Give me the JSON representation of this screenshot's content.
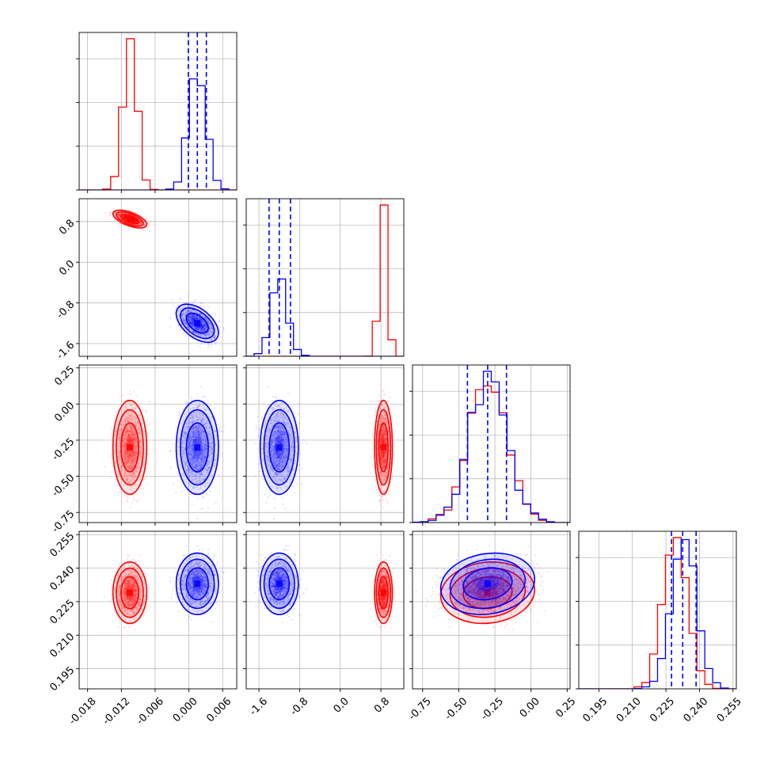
{
  "chart_data": {
    "type": "corner",
    "title": "",
    "grid": true,
    "colors": {
      "series_a": "#ff0000",
      "series_b": "#0000ff"
    },
    "parameters": [
      {
        "range": [
          -0.0195,
          0.0085
        ],
        "ticks": [
          "-0.018",
          "-0.012",
          "-0.006",
          "0.000",
          "0.006"
        ],
        "tick_values": [
          -0.018,
          -0.012,
          -0.006,
          0.0,
          0.006
        ]
      },
      {
        "range": [
          -1.85,
          1.25
        ],
        "ticks": [
          "-1.6",
          "-0.8",
          "0.0",
          "0.8"
        ],
        "tick_values": [
          -1.6,
          -0.8,
          0.0,
          0.8
        ]
      },
      {
        "range": [
          -0.82,
          0.27
        ],
        "ticks": [
          "-0.75",
          "-0.50",
          "-0.25",
          "0.00",
          "0.25"
        ],
        "tick_values": [
          -0.75,
          -0.5,
          -0.25,
          0.0,
          0.25
        ]
      },
      {
        "range": [
          0.186,
          0.2565
        ],
        "ticks": [
          "0.195",
          "0.210",
          "0.225",
          "0.240",
          "0.255"
        ],
        "tick_values": [
          0.195,
          0.21,
          0.225,
          0.24,
          0.255
        ]
      }
    ],
    "series": [
      {
        "color": "#ff0000",
        "means": [
          -0.0105,
          0.85,
          -0.3,
          0.229
        ],
        "sds": [
          0.0012,
          0.07,
          0.13,
          0.0055
        ],
        "corr": [
          [
            1,
            -0.6
          ],
          [
            2,
            0
          ],
          [
            3,
            0
          ],
          [
            2,
            1,
            0
          ],
          [
            3,
            1,
            0
          ],
          [
            3,
            2,
            0.1
          ]
        ]
      },
      {
        "color": "#0000ff",
        "means": [
          0.0015,
          -1.2,
          -0.3,
          0.233
        ],
        "sds": [
          0.0015,
          0.15,
          0.13,
          0.0055
        ],
        "corr": [
          [
            1,
            -0.5
          ],
          [
            2,
            0
          ],
          [
            3,
            0
          ],
          [
            2,
            1,
            0
          ],
          [
            3,
            1,
            0
          ],
          [
            3,
            2,
            0.15
          ]
        ]
      }
    ],
    "quantile_lines": {
      "color": "#0000ff",
      "values": [
        [
          -0.0001,
          0.0015,
          0.0031
        ],
        [
          -1.4,
          -1.2,
          -0.98
        ],
        [
          -0.44,
          -0.3,
          -0.17
        ],
        [
          0.2275,
          0.2325,
          0.2385
        ]
      ]
    }
  }
}
